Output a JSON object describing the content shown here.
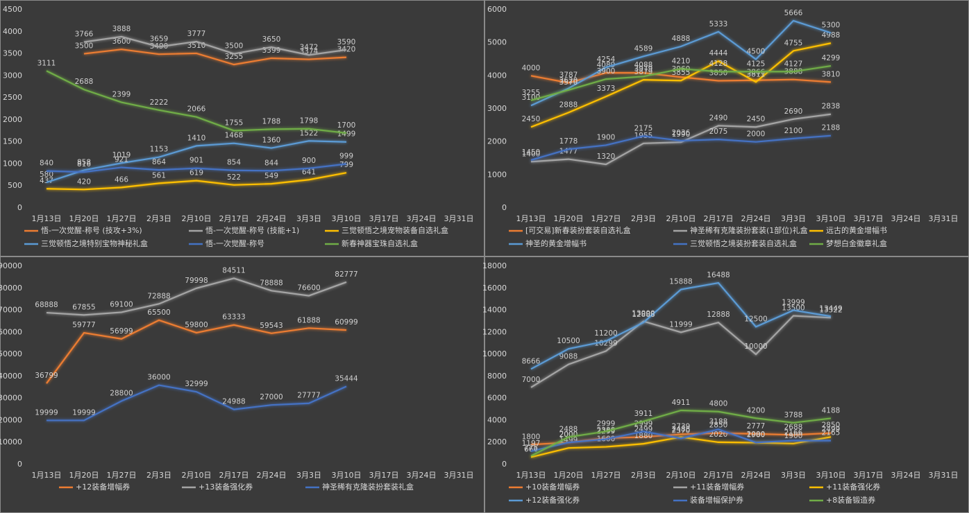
{
  "chart_data": [
    {
      "type": "line",
      "legend": "bottom",
      "grid": false,
      "categories": [
        "1月13日",
        "1月20日",
        "1月27日",
        "2月3日",
        "2月10日",
        "2月17日",
        "2月24日",
        "3月3日",
        "3月10日",
        "3月17日",
        "3月24日",
        "3月31日"
      ],
      "ylim": [
        0,
        4500
      ],
      "yticks": [
        0,
        500,
        1000,
        1500,
        2000,
        2500,
        3000,
        3500,
        4000,
        4500
      ],
      "series": [
        {
          "name": "悟-一次觉醒-称号 (技攻+3%)",
          "color": "#ed7d31",
          "values": [
            null,
            3500,
            3600,
            3490,
            3510,
            3255,
            3399,
            3374,
            3420,
            null,
            null,
            null
          ]
        },
        {
          "name": "悟-一次觉醒-称号 (技能+1)",
          "color": "#a5a5a5",
          "values": [
            null,
            3766,
            3888,
            3659,
            3777,
            3500,
            3650,
            3472,
            3590,
            null,
            null,
            null
          ]
        },
        {
          "name": "三觉顿悟之境宠物装备自选礼盒",
          "color": "#ffc000",
          "values": [
            437,
            420,
            466,
            561,
            619,
            522,
            549,
            641,
            799,
            null,
            null,
            null
          ]
        },
        {
          "name": "三觉顿悟之境特别宝物神秘礼盒",
          "color": "#5b9bd5",
          "values": [
            580,
            858,
            1019,
            1153,
            1410,
            1468,
            1360,
            1522,
            1499,
            null,
            null,
            null
          ]
        },
        {
          "name": "悟-一次觉醒-称号",
          "color": "#4472c4",
          "values": [
            840,
            816,
            921,
            864,
            901,
            854,
            844,
            900,
            999,
            null,
            null,
            null
          ]
        },
        {
          "name": "新春神器宝珠自选礼盒",
          "color": "#70ad47",
          "values": [
            3111,
            2688,
            2399,
            2222,
            2066,
            1755,
            1788,
            1798,
            1700,
            null,
            null,
            null
          ]
        }
      ]
    },
    {
      "type": "line",
      "legend": "bottom",
      "grid": false,
      "categories": [
        "1月13日",
        "1月20日",
        "1月27日",
        "2月3日",
        "2月10日",
        "2月17日",
        "2月24日",
        "3月3日",
        "3月10日",
        "3月17日",
        "3月24日",
        "3月31日"
      ],
      "ylim": [
        0,
        6000
      ],
      "yticks": [
        0,
        1000,
        2000,
        3000,
        4000,
        5000,
        6000
      ],
      "series": [
        {
          "name": "[可交易]新春装扮套装自选礼盒",
          "color": "#ed7d31",
          "values": [
            4000,
            3787,
            4089,
            4088,
            3960,
            3850,
            3866,
            3888,
            3810,
            null,
            null,
            null
          ]
        },
        {
          "name": "神圣稀有克隆装扮套装(1部位)礼盒",
          "color": "#a5a5a5",
          "values": [
            1400,
            1477,
            1320,
            1955,
            1990,
            2490,
            2450,
            2690,
            2838,
            null,
            null,
            null
          ]
        },
        {
          "name": "远古的黄金增幅书",
          "color": "#ffc000",
          "values": [
            2450,
            2888,
            3373,
            3879,
            3855,
            4444,
            3811,
            4755,
            4988,
            null,
            null,
            null
          ]
        },
        {
          "name": "神圣的黄金增幅书",
          "color": "#5b9bd5",
          "values": [
            3100,
            3620,
            4254,
            4589,
            4888,
            5333,
            4500,
            5666,
            5300,
            null,
            null,
            null
          ]
        },
        {
          "name": "三觉顿悟之境装扮套装自选礼盒",
          "color": "#4472c4",
          "values": [
            1450,
            1778,
            1900,
            2175,
            2036,
            2075,
            2000,
            2100,
            2188,
            null,
            null,
            null
          ]
        },
        {
          "name": "梦想白金徽章礼盒",
          "color": "#70ad47",
          "values": [
            3255,
            3570,
            3900,
            3979,
            4210,
            4128,
            4125,
            4127,
            4299,
            null,
            null,
            null
          ]
        }
      ]
    },
    {
      "type": "line",
      "legend": "bottom",
      "grid": false,
      "categories": [
        "1月13日",
        "1月20日",
        "1月27日",
        "2月3日",
        "2月10日",
        "2月17日",
        "2月24日",
        "3月3日",
        "3月10日",
        "3月17日",
        "3月24日",
        "3月31日"
      ],
      "ylim": [
        0,
        90000
      ],
      "yticks": [
        0,
        10000,
        20000,
        30000,
        40000,
        50000,
        60000,
        70000,
        80000,
        90000
      ],
      "series": [
        {
          "name": "+12装备增幅券",
          "color": "#ed7d31",
          "values": [
            36799,
            59777,
            56999,
            65500,
            59800,
            63333,
            59543,
            61888,
            60999,
            null,
            null,
            null
          ]
        },
        {
          "name": "+13装备强化券",
          "color": "#a5a5a5",
          "values": [
            68888,
            67855,
            69100,
            72888,
            79998,
            84511,
            78888,
            76600,
            82777,
            null,
            null,
            null
          ]
        },
        {
          "name": "神圣稀有克隆装扮套装礼盒",
          "color": "#4472c4",
          "values": [
            19999,
            19999,
            28800,
            36000,
            32999,
            24988,
            27000,
            27777,
            35444,
            null,
            null,
            null
          ]
        }
      ]
    },
    {
      "type": "line",
      "legend": "bottom",
      "grid": false,
      "categories": [
        "1月13日",
        "1月20日",
        "1月27日",
        "2月3日",
        "2月10日",
        "2月17日",
        "2月24日",
        "3月3日",
        "3月10日",
        "3月17日",
        "3月24日",
        "3月31日"
      ],
      "ylim": [
        0,
        18000
      ],
      "yticks": [
        0,
        2000,
        4000,
        6000,
        8000,
        10000,
        12000,
        14000,
        16000,
        18000
      ],
      "series": [
        {
          "name": "+10装备增幅券",
          "color": "#ed7d31",
          "values": [
            1800,
            2000,
            2388,
            2499,
            2739,
            2850,
            2777,
            2688,
            2850,
            null,
            null,
            null
          ]
        },
        {
          "name": "+11装备增幅券",
          "color": "#a5a5a5",
          "values": [
            7000,
            9088,
            10299,
            13000,
            11999,
            12888,
            10000,
            13500,
            13322,
            null,
            null,
            null
          ]
        },
        {
          "name": "+11装备强化券",
          "color": "#ffc000",
          "values": [
            666,
            1499,
            1600,
            1880,
            2488,
            2020,
            1980,
            1900,
            2499,
            null,
            null,
            null
          ]
        },
        {
          "name": "+12装备强化券",
          "color": "#5b9bd5",
          "values": [
            8666,
            10500,
            11200,
            12888,
            15888,
            16488,
            12500,
            13999,
            13449,
            null,
            null,
            null
          ]
        },
        {
          "name": "装备增幅保护券",
          "color": "#4472c4",
          "values": [
            1197,
            2000,
            2299,
            2999,
            2370,
            3188,
            2000,
            2166,
            2165,
            null,
            null,
            null
          ]
        },
        {
          "name": "+8装备锻造券",
          "color": "#70ad47",
          "values": [
            775,
            2488,
            2999,
            3911,
            4911,
            4800,
            4200,
            3788,
            4188,
            null,
            null,
            null
          ]
        }
      ]
    }
  ]
}
